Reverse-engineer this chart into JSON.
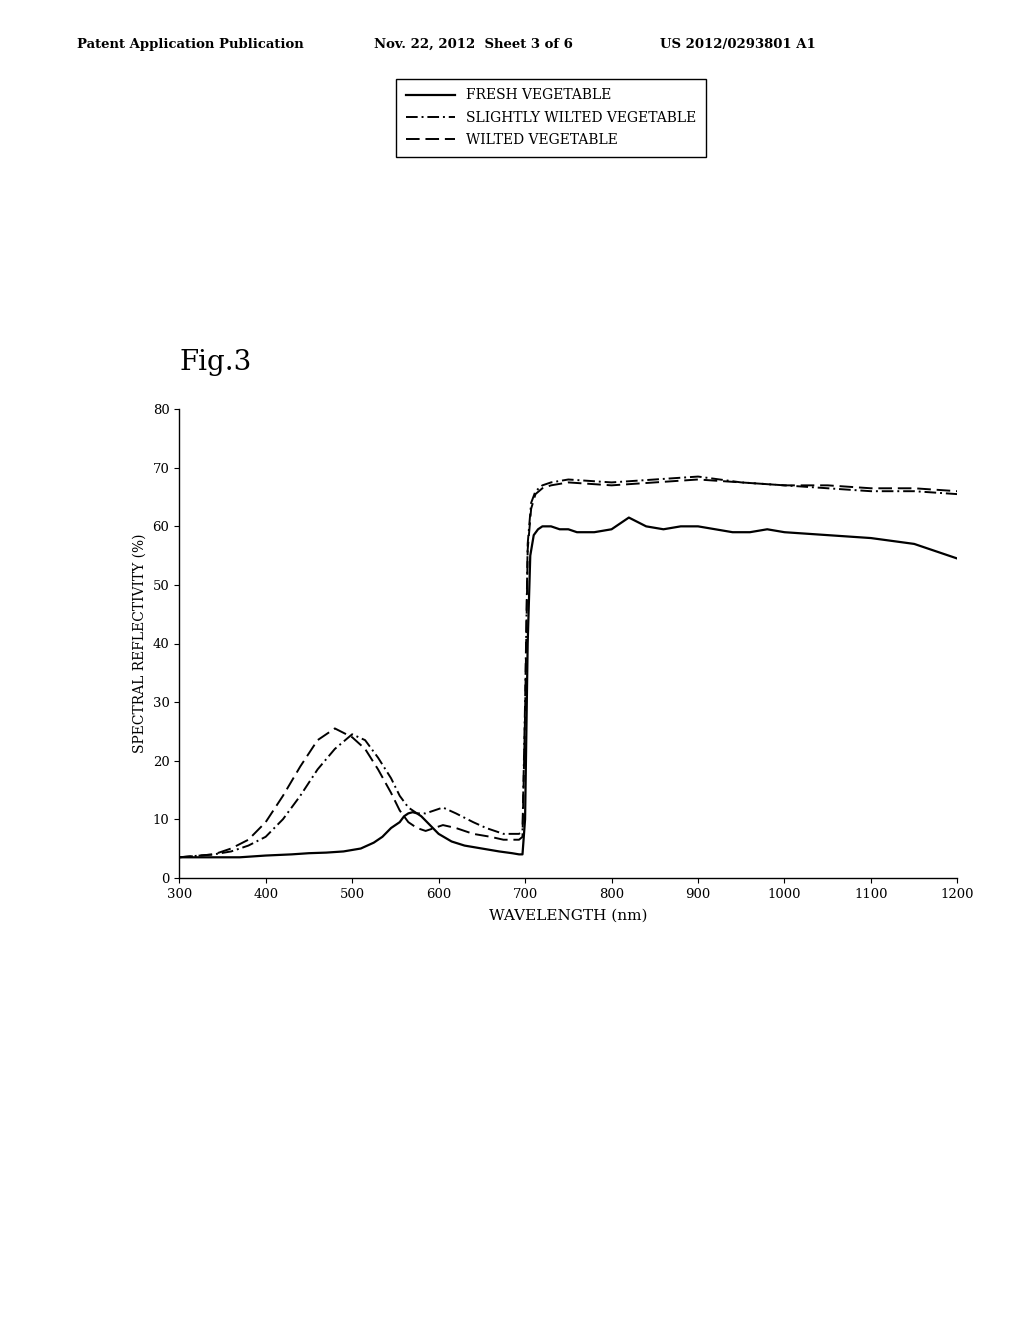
{
  "title_fig": "Fig.3",
  "xlabel": "WAVELENGTH (nm)",
  "ylabel": "SPECTRAL REFLECTIVITY (%)",
  "xlim": [
    300,
    1200
  ],
  "ylim": [
    0,
    80
  ],
  "xticks": [
    300,
    400,
    500,
    600,
    700,
    800,
    900,
    1000,
    1100,
    1200
  ],
  "yticks": [
    0,
    10,
    20,
    30,
    40,
    50,
    60,
    70,
    80
  ],
  "background_color": "#ffffff",
  "legend_entries": [
    "FRESH VEGETABLE",
    "SLIGHTLY WILTED VEGETABLE",
    "WILTED VEGETABLE"
  ],
  "fresh_x": [
    300,
    340,
    370,
    400,
    430,
    450,
    470,
    490,
    510,
    525,
    535,
    545,
    555,
    560,
    565,
    570,
    575,
    580,
    590,
    600,
    615,
    630,
    650,
    670,
    685,
    693,
    697,
    700,
    703,
    706,
    710,
    715,
    720,
    730,
    740,
    750,
    760,
    780,
    800,
    820,
    840,
    860,
    880,
    900,
    920,
    940,
    960,
    980,
    1000,
    1050,
    1100,
    1150,
    1200
  ],
  "fresh_y": [
    3.5,
    3.5,
    3.5,
    3.8,
    4.0,
    4.2,
    4.3,
    4.5,
    5.0,
    6.0,
    7.0,
    8.5,
    9.5,
    10.5,
    11.0,
    11.2,
    11.0,
    10.5,
    9.0,
    7.5,
    6.2,
    5.5,
    5.0,
    4.5,
    4.2,
    4.0,
    4.0,
    10.0,
    40.0,
    55.0,
    58.5,
    59.5,
    60.0,
    60.0,
    59.5,
    59.5,
    59.0,
    59.0,
    59.5,
    61.5,
    60.0,
    59.5,
    60.0,
    60.0,
    59.5,
    59.0,
    59.0,
    59.5,
    59.0,
    58.5,
    58.0,
    57.0,
    54.5
  ],
  "slightly_x": [
    300,
    340,
    360,
    380,
    400,
    420,
    440,
    460,
    480,
    500,
    515,
    530,
    545,
    555,
    565,
    575,
    585,
    595,
    605,
    620,
    640,
    655,
    665,
    675,
    685,
    693,
    697,
    700,
    703,
    707,
    712,
    720,
    730,
    750,
    800,
    850,
    900,
    950,
    1000,
    1050,
    1100,
    1150,
    1200
  ],
  "slightly_y": [
    3.5,
    4.0,
    4.5,
    5.5,
    7.0,
    10.0,
    14.0,
    18.5,
    22.0,
    24.5,
    23.5,
    20.5,
    17.0,
    14.0,
    12.0,
    11.0,
    11.0,
    11.5,
    12.0,
    11.0,
    9.5,
    8.5,
    8.0,
    7.5,
    7.5,
    7.5,
    8.0,
    30.0,
    57.0,
    64.0,
    66.0,
    67.0,
    67.5,
    68.0,
    67.5,
    68.0,
    68.5,
    67.5,
    67.0,
    66.5,
    66.0,
    66.0,
    65.5
  ],
  "wilted_x": [
    300,
    340,
    360,
    380,
    400,
    420,
    440,
    460,
    480,
    500,
    515,
    530,
    545,
    555,
    565,
    575,
    585,
    595,
    605,
    620,
    640,
    660,
    675,
    685,
    693,
    697,
    700,
    703,
    707,
    712,
    720,
    730,
    750,
    800,
    850,
    900,
    950,
    1000,
    1050,
    1100,
    1150,
    1200
  ],
  "wilted_y": [
    3.5,
    4.0,
    5.0,
    6.5,
    9.5,
    14.0,
    19.0,
    23.5,
    25.5,
    24.0,
    22.0,
    18.5,
    14.5,
    11.5,
    9.5,
    8.5,
    8.0,
    8.5,
    9.0,
    8.5,
    7.5,
    7.0,
    6.5,
    6.5,
    6.5,
    7.0,
    28.0,
    56.0,
    63.0,
    65.5,
    66.5,
    67.0,
    67.5,
    67.0,
    67.5,
    68.0,
    67.5,
    67.0,
    67.0,
    66.5,
    66.5,
    66.0
  ]
}
